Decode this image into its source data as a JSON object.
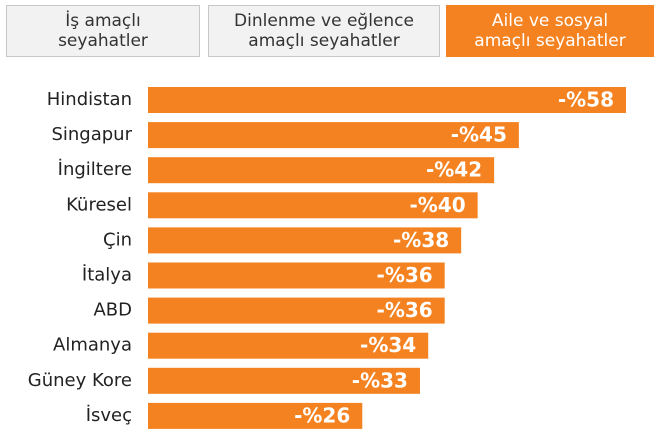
{
  "tabs": [
    {
      "label_lines": [
        "İş amaçlı",
        "seyahatler"
      ]
    },
    {
      "label_lines": [
        "Dinlenme ve eğlence",
        "amaçlı seyahatler"
      ]
    },
    {
      "label_lines": [
        "Aile ve sosyal",
        "amaçlı seyahatler"
      ]
    }
  ],
  "active_tab": 2,
  "chart_data": {
    "type": "bar",
    "orientation": "horizontal",
    "color": "#f58220",
    "categories": [
      "Hindistan",
      "Singapur",
      "İngiltere",
      "Küresel",
      "Çin",
      "İtalya",
      "ABD",
      "Almanya",
      "Güney Kore",
      "İsveç"
    ],
    "values": [
      -58,
      -45,
      -42,
      -40,
      -38,
      -36,
      -36,
      -34,
      -33,
      -26
    ],
    "value_labels": [
      "-%58",
      "-%45",
      "-%42",
      "-%40",
      "-%38",
      "-%36",
      "-%36",
      "-%34",
      "-%33",
      "-%26"
    ]
  }
}
